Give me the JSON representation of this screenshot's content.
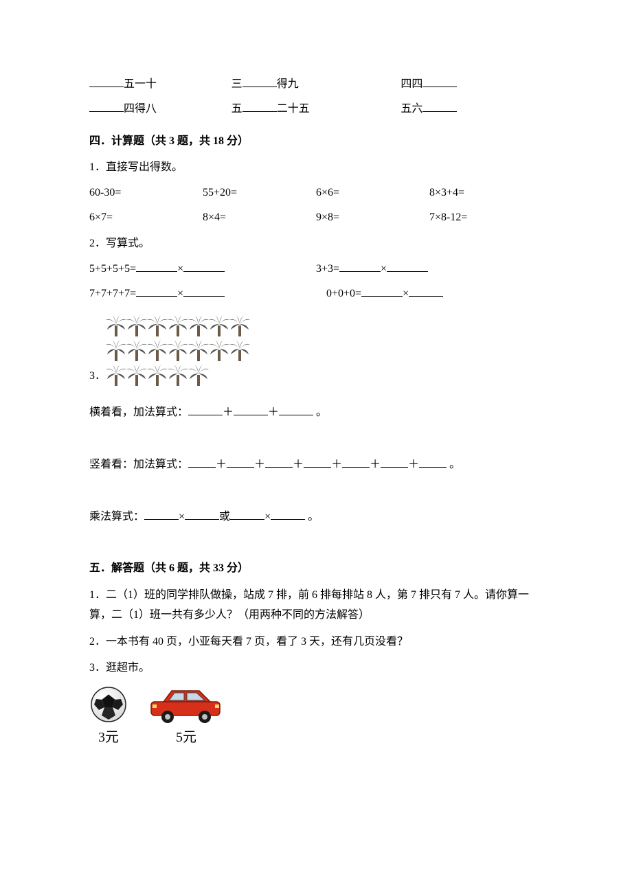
{
  "fill_in": {
    "row1": {
      "c1_after": "五一十",
      "c2_before": "三",
      "c2_after": "得九",
      "c3_before": "四四"
    },
    "row2": {
      "c1_after": "四得八",
      "c2_before": "五",
      "c2_after": "二十五",
      "c3_before": "五六"
    }
  },
  "section4": {
    "title": "四．计算题（共 3 题，共 18 分）",
    "q1": {
      "prompt": "1．直接写出得数。",
      "row1": [
        "60-30=",
        "55+20=",
        "6×6=",
        "8×3+4="
      ],
      "row2": [
        "6×7=",
        "8×4=",
        "9×8=",
        "7×8-12="
      ]
    },
    "q2": {
      "prompt": "2．写算式。",
      "row1": {
        "a": "5+5+5+5=",
        "mult": "×",
        "b": "3+3=",
        "mult2": "×"
      },
      "row2": {
        "a": "7+7+7+7=",
        "mult": "×",
        "b": "0+0+0=",
        "mult2": "×"
      }
    },
    "q3": {
      "tree_rows": [
        7,
        7,
        5
      ],
      "num": "3．",
      "horiz_label": "横着看，加法算式：",
      "horiz_sep": "＋",
      "horiz_end": " 。",
      "vert_label": "竖着看：加法算式：",
      "vert_sep": "＋",
      "vert_end": " 。",
      "mult_label": "乘法算式：",
      "mult_sep": "×",
      "mult_or": "或",
      "mult_end": " 。"
    }
  },
  "section5": {
    "title": "五．解答题（共 6 题，共 33 分）",
    "q1": "1．二（1）班的同学排队做操，站成 7 排，前 6 排每排站 8 人，第 7 排只有 7 人。请你算一算，二（1）班一共有多少人？（用两种不同的方法解答）",
    "q2": "2．一本书有 40 页，小亚每天看 7 页，看了 3 天，还有几页没看？",
    "q3": "3．逛超市。",
    "products": [
      {
        "name": "soccer-ball",
        "label": "3元"
      },
      {
        "name": "car",
        "label": "5元"
      }
    ]
  },
  "colors": {
    "text": "#000000",
    "background": "#ffffff",
    "tree_trunk": "#6b5a45",
    "tree_leaf": "#555555",
    "ball_white": "#ffffff",
    "ball_black": "#111111",
    "car_red": "#d7301a",
    "car_dark": "#222222",
    "car_window": "#c7d8e6",
    "car_tire": "#1a1a1a",
    "car_hub": "#bfbfbf"
  }
}
